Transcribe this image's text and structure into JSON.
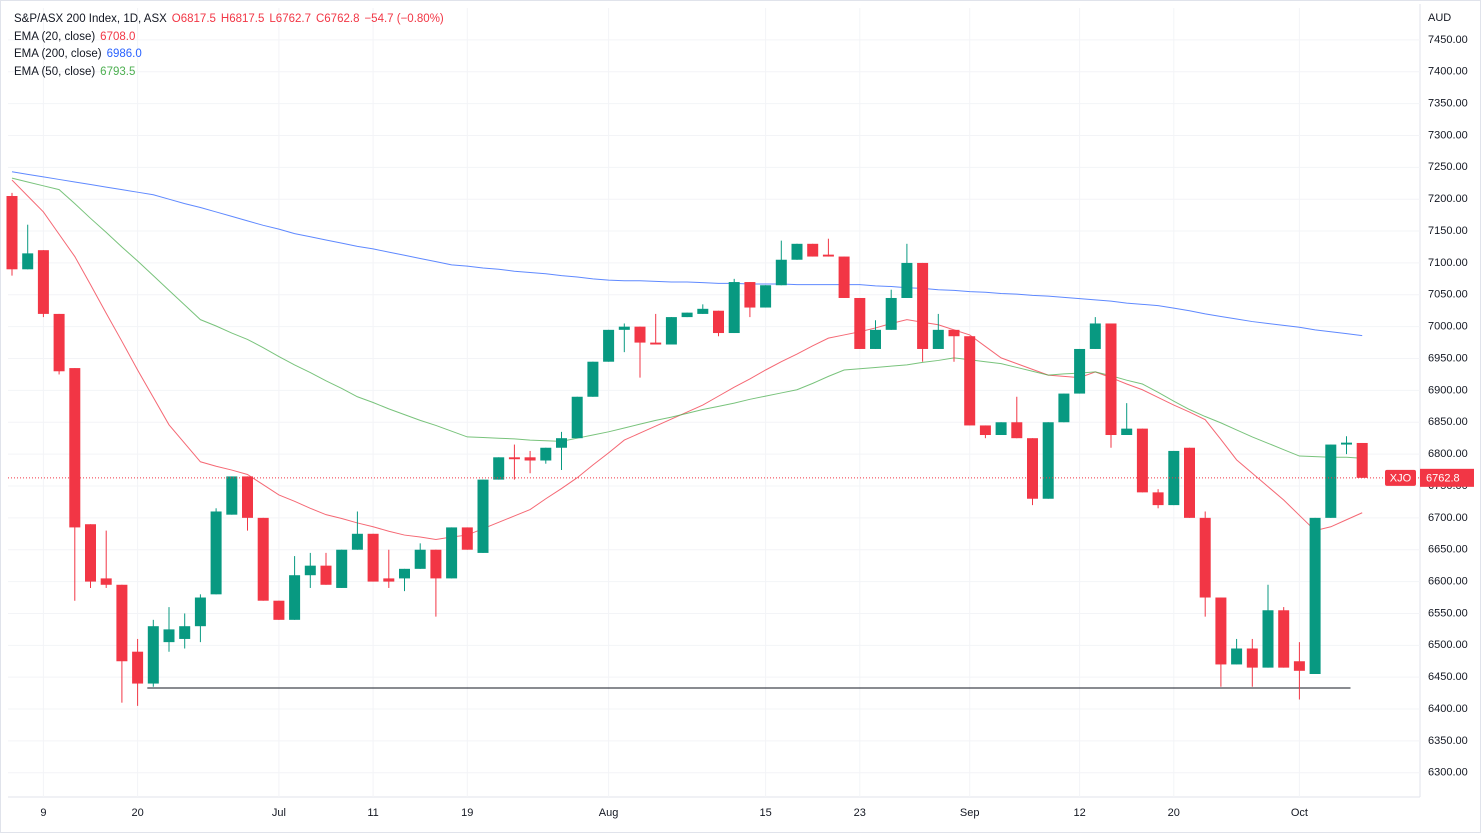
{
  "chart_data": {
    "type": "candlestick",
    "title": "S&P/ASX 200 Index, 1D, ASX",
    "ohlc_labels": [
      "O6817.5",
      "H6817.5",
      "L6762.7",
      "C6762.8",
      "−54.7 (−0.80%)"
    ],
    "currency": "AUD",
    "symbol": "XJO",
    "last_price_label": "6762.8",
    "up_color": "#089981",
    "down_color": "#f23645",
    "grid": true,
    "categories": [
      null,
      null,
      "9",
      null,
      null,
      null,
      null,
      null,
      "20",
      null,
      null,
      null,
      null,
      null,
      null,
      null,
      null,
      "Jul",
      null,
      null,
      null,
      null,
      null,
      "11",
      null,
      null,
      null,
      null,
      null,
      "19",
      null,
      null,
      null,
      null,
      null,
      null,
      null,
      null,
      "Aug",
      null,
      null,
      null,
      null,
      null,
      null,
      null,
      null,
      null,
      "15",
      null,
      null,
      null,
      null,
      null,
      "23",
      null,
      null,
      null,
      null,
      null,
      null,
      "Sep",
      null,
      null,
      null,
      null,
      null,
      null,
      "12",
      null,
      null,
      null,
      null,
      null,
      "20",
      null,
      null,
      null,
      null,
      null,
      null,
      null,
      "Oct",
      null,
      null,
      null,
      null
    ],
    "open": [
      7205,
      7090,
      7120,
      7020,
      6935,
      6690,
      6605,
      6595,
      6490,
      6440,
      6505,
      6510,
      6530,
      6580,
      6705,
      6765,
      6700,
      6570,
      6540,
      6610,
      6625,
      6590,
      6650,
      6675,
      6605,
      6605,
      6620,
      6650,
      6605,
      6685,
      6645,
      6760,
      6795,
      6795,
      6790,
      6810,
      6825,
      6890,
      6945,
      6995,
      7000,
      6975,
      6972,
      7015,
      7020,
      7025,
      6990,
      7070,
      7030,
      7065,
      7105,
      7130,
      7113,
      7110,
      7045,
      6965,
      6995,
      7045,
      7100,
      6965,
      6995,
      6985,
      6845,
      6830,
      6850,
      6825,
      6730,
      6850,
      6895,
      6965,
      7005,
      6830,
      6840,
      6740,
      6720,
      6810,
      6700,
      6575,
      6470,
      6495,
      6465,
      6555,
      6475,
      6455,
      6700,
      6815,
      6817.5
    ],
    "high": [
      7210,
      7160,
      7120,
      7020,
      6935,
      6690,
      6680,
      6595,
      6510,
      6540,
      6560,
      6550,
      6580,
      6715,
      6765,
      6765,
      6700,
      6570,
      6640,
      6645,
      6645,
      6650,
      6710,
      6675,
      6650,
      6620,
      6660,
      6650,
      6685,
      6685,
      6760,
      6795,
      6815,
      6805,
      6810,
      6835,
      6890,
      6945,
      6995,
      7005,
      7000,
      7020,
      7015,
      7022,
      7035,
      7025,
      7075,
      7070,
      7065,
      7135,
      7130,
      7130,
      7138,
      7110,
      7045,
      7010,
      7058,
      7130,
      7100,
      7020,
      6995,
      6985,
      6845,
      6850,
      6890,
      6825,
      6850,
      6895,
      6965,
      7015,
      7005,
      6880,
      6840,
      6745,
      6805,
      6810,
      6710,
      6575,
      6510,
      6510,
      6595,
      6560,
      6505,
      6700,
      6815,
      6828,
      6817.5
    ],
    "low": [
      7080,
      7090,
      7015,
      6925,
      6570,
      6590,
      6590,
      6410,
      6405,
      6435,
      6490,
      6495,
      6505,
      6580,
      6705,
      6680,
      6570,
      6540,
      6540,
      6590,
      6595,
      6590,
      6650,
      6600,
      6590,
      6585,
      6620,
      6545,
      6605,
      6650,
      6645,
      6760,
      6760,
      6770,
      6785,
      6775,
      6825,
      6890,
      6945,
      6960,
      6920,
      6972,
      6972,
      7015,
      7020,
      6985,
      6990,
      7015,
      7030,
      7065,
      7105,
      7110,
      7110,
      7045,
      6965,
      6965,
      6995,
      7045,
      6945,
      6965,
      6945,
      6845,
      6825,
      6830,
      6825,
      6720,
      6730,
      6850,
      6895,
      6965,
      6810,
      6830,
      6740,
      6715,
      6720,
      6700,
      6545,
      6435,
      6470,
      6435,
      6465,
      6465,
      6415,
      6455,
      6700,
      6800,
      6762.7
    ],
    "close": [
      7090,
      7115,
      7020,
      6930,
      6685,
      6600,
      6595,
      6475,
      6440,
      6530,
      6525,
      6530,
      6575,
      6710,
      6765,
      6700,
      6570,
      6540,
      6610,
      6625,
      6595,
      6650,
      6675,
      6600,
      6600,
      6620,
      6650,
      6605,
      6685,
      6650,
      6760,
      6795,
      6792,
      6790,
      6810,
      6825,
      6890,
      6945,
      6995,
      7000,
      6975,
      6972,
      7015,
      7022,
      7028,
      6990,
      7070,
      7030,
      7065,
      7105,
      7130,
      7110,
      7110,
      7045,
      6965,
      6995,
      7045,
      7100,
      6965,
      6995,
      6985,
      6845,
      6830,
      6850,
      6825,
      6730,
      6850,
      6895,
      6965,
      7005,
      6830,
      6840,
      6740,
      6720,
      6805,
      6700,
      6575,
      6470,
      6495,
      6465,
      6555,
      6465,
      6460,
      6700,
      6815,
      6818,
      6762.8
    ],
    "series": [
      {
        "name": "EMA (20, close)",
        "last_label": "6708.0",
        "color": "#f23645",
        "values": [
          7230,
          7205,
          7180,
          7145,
          7110,
          7066,
          7021,
          6977,
          6932,
          6889,
          6846,
          6817,
          6788,
          6781,
          6775,
          6768,
          6752,
          6736,
          6726,
          6715,
          6705,
          6699,
          6692,
          6686,
          6679,
          6673,
          6670,
          6666,
          6670,
          6673,
          6683,
          6693,
          6703,
          6713,
          6730,
          6746,
          6763,
          6783,
          6802,
          6822,
          6833,
          6844,
          6855,
          6866,
          6877,
          6891,
          6905,
          6918,
          6932,
          6945,
          6957,
          6970,
          6982,
          6987,
          6992,
          6998,
          7005,
          7011,
          7007,
          7003,
          6995,
          6987,
          6969,
          6951,
          6942,
          6933,
          6924,
          6922,
          6920,
          6929,
          6920,
          6910,
          6901,
          6889,
          6877,
          6866,
          6854,
          6823,
          6791,
          6770,
          6749,
          6728,
          6704,
          6680,
          6686,
          6697,
          6708
        ]
      },
      {
        "name": "EMA (200, close)",
        "last_label": "6986.0",
        "color": "#2962ff",
        "values": [
          7243,
          7239,
          7235,
          7231,
          7227,
          7223,
          7219,
          7215,
          7211,
          7207,
          7200,
          7193,
          7187,
          7180,
          7173,
          7166,
          7159,
          7153,
          7146,
          7141,
          7136,
          7131,
          7126,
          7122,
          7117,
          7112,
          7107,
          7102,
          7097,
          7095,
          7092,
          7090,
          7087,
          7085,
          7083,
          7080,
          7078,
          7075,
          7073,
          7072,
          7072,
          7071,
          7070,
          7070,
          7069,
          7068,
          7068,
          7067,
          7067,
          7067,
          7066,
          7066,
          7066,
          7066,
          7066,
          7064,
          7063,
          7061,
          7060,
          7058,
          7057,
          7055,
          7054,
          7052,
          7051,
          7049,
          7048,
          7046,
          7044,
          7042,
          7040,
          7037,
          7035,
          7033,
          7029,
          7025,
          7020,
          7016,
          7012,
          7008,
          7005,
          7002,
          6999,
          6995,
          6992,
          6989,
          6986
        ]
      },
      {
        "name": "EMA (50, close)",
        "last_label": "6793.5",
        "color": "#4caf50",
        "values": [
          7233,
          7227,
          7221,
          7215,
          7193,
          7170,
          7148,
          7125,
          7103,
          7080,
          7057,
          7034,
          7011,
          7001,
          6990,
          6980,
          6967,
          6953,
          6940,
          6928,
          6915,
          6903,
          6890,
          6881,
          6871,
          6862,
          6853,
          6845,
          6836,
          6827,
          6826,
          6825,
          6824,
          6822,
          6821,
          6820,
          6825,
          6830,
          6835,
          6841,
          6847,
          6853,
          6858,
          6864,
          6870,
          6875,
          6880,
          6886,
          6891,
          6896,
          6901,
          6911,
          6922,
          6932,
          6934,
          6936,
          6938,
          6940,
          6944,
          6947,
          6951,
          6948,
          6945,
          6942,
          6936,
          6930,
          6924,
          6926,
          6927,
          6929,
          6923,
          6916,
          6910,
          6897,
          6883,
          6870,
          6859,
          6849,
          6838,
          6827,
          6817,
          6807,
          6797,
          6796,
          6795,
          6795,
          6793.5
        ]
      }
    ],
    "hline": {
      "value": 6433,
      "from": 9,
      "to": 85
    },
    "ylim": [
      6262,
      7500
    ],
    "yticks": [
      {
        "value": 6300,
        "label": "6300.00"
      },
      {
        "value": 6350,
        "label": "6350.00"
      },
      {
        "value": 6400,
        "label": "6400.00"
      },
      {
        "value": 6450,
        "label": "6450.00"
      },
      {
        "value": 6500,
        "label": "6500.00"
      },
      {
        "value": 6550,
        "label": "6550.00"
      },
      {
        "value": 6600,
        "label": "6600.00"
      },
      {
        "value": 6650,
        "label": "6650.00"
      },
      {
        "value": 6700,
        "label": "6700.00"
      },
      {
        "value": 6750,
        "label": "6750.00"
      },
      {
        "value": 6800,
        "label": "6800.00"
      },
      {
        "value": 6850,
        "label": "6850.00"
      },
      {
        "value": 6900,
        "label": "6900.00"
      },
      {
        "value": 6950,
        "label": "6950.00"
      },
      {
        "value": 7000,
        "label": "7000.00"
      },
      {
        "value": 7050,
        "label": "7050.00"
      },
      {
        "value": 7100,
        "label": "7100.00"
      },
      {
        "value": 7150,
        "label": "7150.00"
      },
      {
        "value": 7200,
        "label": "7200.00"
      },
      {
        "value": 7250,
        "label": "7250.00"
      },
      {
        "value": 7300,
        "label": "7300.00"
      },
      {
        "value": 7350,
        "label": "7350.00"
      },
      {
        "value": 7400,
        "label": "7400.00"
      },
      {
        "value": 7450,
        "label": "7450.00"
      }
    ]
  }
}
